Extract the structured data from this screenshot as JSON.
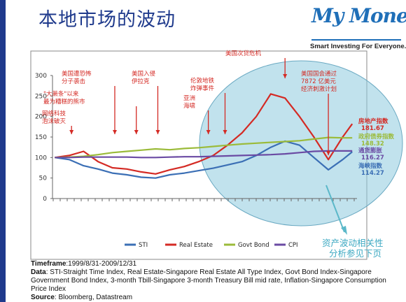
{
  "page": {
    "title": "本地市场的波动"
  },
  "logo": {
    "brand": "My Money",
    "tagline": "Smart Investing For Everyone."
  },
  "colors": {
    "sti": "#3b6fb5",
    "real_estate": "#d42a24",
    "govt_bond": "#9bbb3a",
    "cpi": "#6a4aa3",
    "annotation": "#d42a24",
    "bubble": "#8ecadf"
  },
  "chart_data": {
    "type": "line",
    "title": "",
    "xlabel": "",
    "ylabel": "",
    "ylim": [
      0,
      300
    ],
    "yticks": [
      0,
      50,
      100,
      150,
      200,
      250,
      300
    ],
    "x_range": [
      "1999-08-31",
      "2009-12-31"
    ],
    "x": [
      "1999-08",
      "2000-02",
      "2000-08",
      "2001-02",
      "2001-08",
      "2002-02",
      "2002-08",
      "2003-02",
      "2003-08",
      "2004-02",
      "2004-08",
      "2005-02",
      "2005-08",
      "2006-02",
      "2006-08",
      "2007-02",
      "2007-08",
      "2008-02",
      "2008-08",
      "2009-02",
      "2009-08",
      "2009-12"
    ],
    "series": [
      {
        "name": "STI",
        "key": "sti",
        "values": [
          100,
          95,
          80,
          72,
          62,
          58,
          52,
          50,
          58,
          62,
          68,
          74,
          82,
          90,
          105,
          125,
          140,
          130,
          100,
          70,
          95,
          114
        ]
      },
      {
        "name": "Real Estate",
        "key": "real_estate",
        "values": [
          100,
          105,
          115,
          90,
          75,
          72,
          65,
          60,
          70,
          78,
          90,
          105,
          130,
          160,
          200,
          255,
          245,
          200,
          150,
          95,
          150,
          182
        ]
      },
      {
        "name": "Govt Bond",
        "key": "govt_bond",
        "values": [
          100,
          101,
          103,
          107,
          112,
          115,
          118,
          121,
          119,
          122,
          124,
          127,
          130,
          133,
          135,
          137,
          139,
          141,
          145,
          149,
          148,
          148
        ]
      },
      {
        "name": "CPI",
        "key": "cpi",
        "values": [
          100,
          100,
          101,
          101,
          101,
          101,
          100,
          100,
          101,
          102,
          102,
          103,
          104,
          105,
          106,
          107,
          109,
          112,
          115,
          116,
          116,
          116
        ]
      }
    ],
    "end_labels": [
      {
        "label": "房地产指数",
        "value": "181.67"
      },
      {
        "label": "政府债券指数",
        "value": "148.32"
      },
      {
        "label": "通货膨胀",
        "value": "116.27"
      },
      {
        "label": "海峡指数",
        "value": "114.27"
      }
    ],
    "annotations": [
      {
        "text": "美国遭恐怖分子袭击",
        "date": "2001-09"
      },
      {
        "text": "\"大萧条\"以来最为糟糕的熊市",
        "date": "2002-06"
      },
      {
        "text": "网络科技泡沫破灭",
        "date": "2000-03"
      },
      {
        "text": "美国入侵伊拉克",
        "date": "2003-03"
      },
      {
        "text": "伦敦地铁炸弹事件",
        "date": "2005-07"
      },
      {
        "text": "亚洲海啸",
        "date": "2004-12"
      },
      {
        "text": "美国次贷危机",
        "date": "2007-08"
      },
      {
        "text": "美国国会通过7872 亿美元经济刺激计划",
        "date": "2009-02"
      }
    ],
    "bubble_note": "资产波动相关性分析参见下页",
    "legend_position": "bottom",
    "grid": false
  },
  "notes": {
    "timeframe_label": "Timeframe",
    "timeframe_value": ":1999/8/31-2009/12/31",
    "data_label": "Data",
    "data_value": ": STI-Straight Time Index, Real Estate-Singapore Real Estate All Type Index, Govt Bond Index-Singapore Government Bond Index, 3-month Tbill-Singapore 3-month Treasury Bill mid rate,  Inflation-Singapore Consumption Price Index",
    "source_label": "Source",
    "source_value": ": Bloomberg, Datastream"
  }
}
